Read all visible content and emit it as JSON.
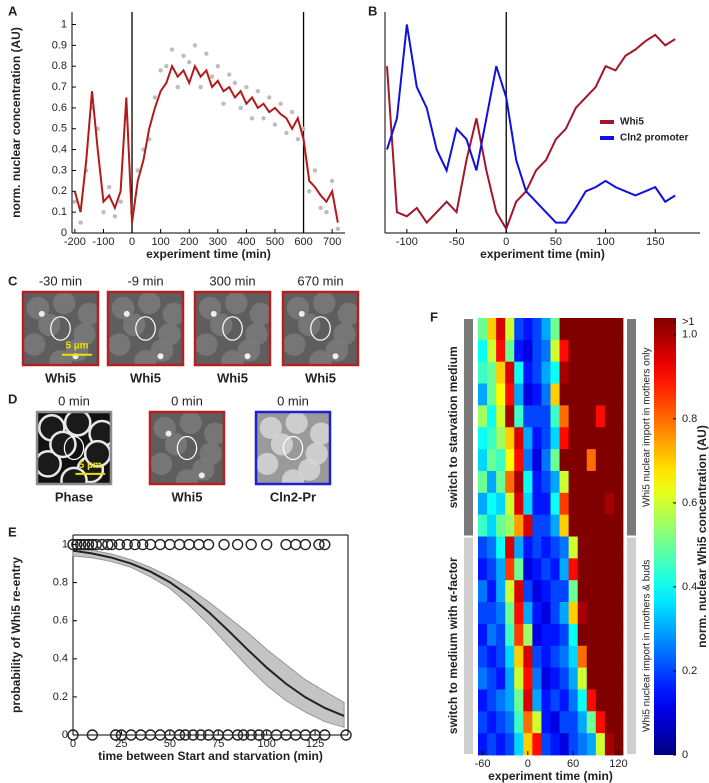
{
  "chart_data": [
    {
      "type": "line",
      "panel": "A",
      "ylabel": "norm. nuclear concentration (AU)",
      "xlabel": "experiment time (min)",
      "x": [
        -200,
        -180,
        -160,
        -140,
        -120,
        -100,
        -80,
        -60,
        -40,
        -20,
        0,
        20,
        40,
        60,
        80,
        100,
        120,
        140,
        160,
        180,
        200,
        220,
        240,
        260,
        280,
        300,
        320,
        340,
        360,
        380,
        400,
        420,
        440,
        460,
        480,
        500,
        520,
        540,
        560,
        580,
        600,
        620,
        640,
        660,
        680,
        700,
        720
      ],
      "series": [
        {
          "type": "scatter",
          "color": "#bdbdbd",
          "values": [
            0.15,
            0.05,
            0.3,
            0.6,
            0.5,
            0.1,
            0.22,
            0.08,
            0.15,
            0.55,
            0.1,
            0.3,
            0.4,
            0.45,
            0.65,
            0.78,
            0.8,
            0.88,
            0.7,
            0.85,
            0.82,
            0.9,
            0.7,
            0.86,
            0.75,
            0.8,
            0.62,
            0.76,
            0.72,
            0.6,
            0.7,
            0.55,
            0.68,
            0.55,
            0.65,
            0.52,
            0.62,
            0.48,
            0.58,
            0.45,
            0.5,
            0.2,
            0.3,
            0.12,
            0.1,
            0.25,
            0.02
          ]
        },
        {
          "type": "line",
          "color": "#b31b1b",
          "values": [
            0.2,
            0.1,
            0.35,
            0.68,
            0.4,
            0.15,
            0.18,
            0.12,
            0.2,
            0.65,
            0.05,
            0.25,
            0.35,
            0.5,
            0.6,
            0.68,
            0.72,
            0.8,
            0.75,
            0.78,
            0.72,
            0.8,
            0.75,
            0.78,
            0.7,
            0.73,
            0.68,
            0.7,
            0.65,
            0.68,
            0.62,
            0.65,
            0.6,
            0.62,
            0.58,
            0.6,
            0.57,
            0.55,
            0.5,
            0.55,
            0.45,
            0.25,
            0.22,
            0.18,
            0.15,
            0.2,
            0.05
          ]
        }
      ],
      "vlines": [
        0,
        600
      ],
      "xlim": [
        -210,
        745
      ],
      "xticks": [
        -200,
        -100,
        0,
        100,
        200,
        300,
        400,
        500,
        600,
        700
      ],
      "ylim": [
        0,
        1.06
      ],
      "yticks": [
        0,
        0.1,
        0.2,
        0.3,
        0.4,
        0.5,
        0.6,
        0.7,
        0.8,
        0.9,
        1
      ]
    },
    {
      "type": "line",
      "panel": "B",
      "xlabel": "experiment time (min)",
      "legend": "right",
      "x": [
        -120,
        -110,
        -100,
        -90,
        -80,
        -70,
        -60,
        -50,
        -40,
        -30,
        -20,
        -10,
        0,
        10,
        20,
        30,
        40,
        50,
        60,
        70,
        80,
        90,
        100,
        110,
        120,
        130,
        140,
        150,
        160,
        170
      ],
      "series": [
        {
          "type": "line",
          "name": "Whi5",
          "color": "#a3162a",
          "values": [
            0.8,
            0.1,
            0.08,
            0.12,
            0.05,
            0.1,
            0.15,
            0.1,
            0.35,
            0.55,
            0.3,
            0.1,
            0.02,
            0.15,
            0.2,
            0.3,
            0.35,
            0.45,
            0.5,
            0.6,
            0.65,
            0.7,
            0.8,
            0.78,
            0.85,
            0.88,
            0.92,
            0.95,
            0.9,
            0.93
          ]
        },
        {
          "type": "line",
          "name": "Cln2 promoter",
          "color": "#1010e0",
          "values": [
            0.4,
            0.55,
            1,
            0.7,
            0.6,
            0.4,
            0.3,
            0.5,
            0.45,
            0.3,
            0.55,
            0.8,
            0.65,
            0.35,
            0.2,
            0.15,
            0.1,
            0.05,
            0.05,
            0.12,
            0.2,
            0.22,
            0.25,
            0.22,
            0.2,
            0.18,
            0.2,
            0.22,
            0.15,
            0.18
          ]
        }
      ],
      "vlines": [
        0
      ],
      "xlim": [
        -122,
        195
      ],
      "xticks": [
        -100,
        -50,
        0,
        50,
        100,
        150
      ],
      "ylim": [
        0,
        1.06
      ]
    },
    {
      "type": "line",
      "panel": "E",
      "ylabel": "probability of Whi5 re-entry",
      "xlabel": "time between Start and starvation (min)",
      "x": [
        0,
        10,
        20,
        30,
        40,
        50,
        60,
        70,
        80,
        90,
        100,
        110,
        120,
        130,
        140
      ],
      "series": [
        {
          "type": "band",
          "color": "#c4c4c4",
          "lower": [
            0.94,
            0.93,
            0.91,
            0.88,
            0.83,
            0.77,
            0.68,
            0.58,
            0.47,
            0.36,
            0.26,
            0.18,
            0.12,
            0.07,
            0.04
          ],
          "upper": [
            0.98,
            0.97,
            0.95,
            0.92,
            0.88,
            0.83,
            0.77,
            0.7,
            0.62,
            0.54,
            0.45,
            0.37,
            0.29,
            0.23,
            0.17
          ]
        },
        {
          "type": "line",
          "color": "#222222",
          "values": [
            0.968,
            0.953,
            0.931,
            0.9,
            0.858,
            0.802,
            0.731,
            0.646,
            0.55,
            0.45,
            0.354,
            0.269,
            0.198,
            0.142,
            0.1
          ]
        },
        {
          "type": "circles",
          "color": "#222222",
          "x": [
            0,
            2,
            4,
            6,
            8,
            10,
            12,
            15,
            18,
            20,
            24,
            28,
            32,
            36,
            40,
            45,
            50,
            55,
            60,
            65,
            70,
            78,
            85,
            92,
            100,
            110,
            115,
            120,
            127,
            130
          ],
          "values": [
            1,
            1,
            1,
            1,
            1,
            1,
            1,
            1,
            1,
            1,
            1,
            1,
            1,
            1,
            1,
            1,
            1,
            1,
            1,
            1,
            1,
            1,
            1,
            1,
            1,
            1,
            1,
            1,
            1,
            1
          ]
        },
        {
          "type": "circles",
          "color": "#222222",
          "x": [
            0,
            10,
            22,
            25,
            30,
            35,
            40,
            45,
            50,
            55,
            58,
            62,
            66,
            70,
            75,
            80,
            85,
            88,
            92,
            96,
            100,
            105,
            110,
            115,
            120,
            125,
            130,
            141
          ],
          "values": [
            0,
            0,
            0,
            0,
            0,
            0,
            0,
            0,
            0,
            0,
            0,
            0,
            0,
            0,
            0,
            0,
            0,
            0,
            0,
            0,
            0,
            0,
            0,
            0,
            0,
            0,
            0,
            0
          ]
        }
      ],
      "xlim": [
        0,
        142
      ],
      "xticks": [
        0,
        25,
        50,
        75,
        100,
        125
      ],
      "ylim": [
        0,
        1.05
      ],
      "yticks": [
        0,
        0.2,
        0.4,
        0.6,
        0.8,
        1
      ]
    },
    {
      "type": "heatmap",
      "panel": "F",
      "xlabel": "experiment time (min)",
      "colormap": "jet",
      "x": [
        -60,
        -48,
        -36,
        -24,
        -12,
        0,
        12,
        24,
        36,
        48,
        60,
        72,
        84,
        96,
        108,
        120
      ],
      "xlim": [
        -66,
        126
      ],
      "xticks": [
        -60,
        0,
        60,
        120
      ],
      "clim": [
        0,
        1.04
      ],
      "cticks": [
        0,
        0.2,
        0.4,
        0.6,
        0.8,
        {
          "value": 1,
          "label": "1.0"
        },
        {
          "value": 1.03,
          "label": ">1"
        }
      ],
      "colorbar_label": "norm. nuclear Whi5 concentration (AU)",
      "groups": [
        {
          "left": "switch to starvation medium",
          "right": "Whi5 nuclear import in mothers only",
          "z": [
            [
              0.5,
              0.7,
              0.95,
              0.6,
              0.2,
              0.15,
              0.2,
              0.3,
              0.5,
              1.1,
              1.2,
              1.2,
              1.2,
              1.1,
              1.2,
              1.2
            ],
            [
              0.4,
              0.6,
              0.9,
              0.5,
              0.15,
              0.1,
              0.2,
              0.25,
              0.6,
              0.9,
              1.2,
              1.2,
              1.1,
              1.2,
              1.2,
              1.2
            ],
            [
              0.45,
              0.5,
              0.7,
              0.95,
              0.4,
              0.15,
              0.2,
              0.3,
              0.4,
              1,
              1.2,
              1.1,
              1.2,
              1.2,
              1.1,
              1.2
            ],
            [
              0.3,
              0.5,
              0.65,
              0.9,
              0.3,
              0.1,
              0.15,
              0.25,
              0.7,
              1.1,
              1.2,
              1.2,
              1.2,
              1.2,
              1.2,
              1.2
            ],
            [
              0.55,
              0.4,
              0.6,
              1,
              0.45,
              0.2,
              0.2,
              0.2,
              0.45,
              0.8,
              1.1,
              1.2,
              1.1,
              0.9,
              1.2,
              1.2
            ],
            [
              0.4,
              0.45,
              0.55,
              0.7,
              0.95,
              0.3,
              0.15,
              0.2,
              0.35,
              0.9,
              1.2,
              1.2,
              1.2,
              1.2,
              1.2,
              1.1
            ],
            [
              0.35,
              0.5,
              0.45,
              0.65,
              0.9,
              0.25,
              0.1,
              0.25,
              0.5,
              1.1,
              1.1,
              1.2,
              0.8,
              1.2,
              1.2,
              1.2
            ],
            [
              0.5,
              0.3,
              0.5,
              0.8,
              1,
              0.4,
              0.15,
              0.2,
              0.3,
              0.6,
              1.2,
              1.2,
              1.2,
              1.1,
              1.2,
              1.2
            ],
            [
              0.3,
              0.4,
              0.35,
              0.6,
              0.95,
              0.35,
              0.15,
              0.15,
              0.4,
              0.85,
              1.1,
              1.2,
              1.2,
              1.2,
              1,
              1.2
            ],
            [
              0.45,
              0.35,
              0.5,
              0.55,
              0.75,
              0.95,
              0.2,
              0.2,
              0.3,
              0.7,
              1.2,
              1.1,
              1.2,
              1.2,
              1.2,
              1.2
            ]
          ]
        },
        {
          "left": "switch to medium with α-factor",
          "right": "Whi5 nuclear import in mothers & buds",
          "z": [
            [
              0.2,
              0.25,
              0.4,
              0.95,
              0.3,
              0.15,
              0.2,
              0.15,
              0.2,
              0.25,
              0.6,
              1.2,
              1.2,
              1.2,
              1.2,
              1.2
            ],
            [
              0.15,
              0.2,
              0.3,
              0.85,
              0.5,
              0.1,
              0.15,
              0.2,
              0.15,
              0.3,
              0.9,
              1.1,
              1.2,
              1.2,
              1.2,
              1.1
            ],
            [
              0.25,
              0.15,
              0.3,
              0.6,
              0.95,
              0.2,
              0.1,
              0.15,
              0.2,
              0.2,
              0.5,
              1.2,
              1.2,
              1.2,
              1.2,
              1.2
            ],
            [
              0.2,
              0.2,
              0.25,
              0.5,
              0.9,
              0.3,
              0.15,
              0.1,
              0.2,
              0.3,
              0.7,
              1,
              1.2,
              1.2,
              1.1,
              1.2
            ],
            [
              0.15,
              0.25,
              0.2,
              0.45,
              0.85,
              0.55,
              0.1,
              0.15,
              0.15,
              0.2,
              0.4,
              1.1,
              1.2,
              1.2,
              1.2,
              1.2
            ],
            [
              0.2,
              0.15,
              0.2,
              0.35,
              0.7,
              0.95,
              0.2,
              0.15,
              0.2,
              0.25,
              0.35,
              0.8,
              1.2,
              1.2,
              1.2,
              1.2
            ],
            [
              0.25,
              0.2,
              0.15,
              0.3,
              0.6,
              0.9,
              0.25,
              0.1,
              0.15,
              0.2,
              0.3,
              0.6,
              1.1,
              1.2,
              1.2,
              1.2
            ],
            [
              0.15,
              0.2,
              0.25,
              0.3,
              0.5,
              0.95,
              0.3,
              0.15,
              0.2,
              0.15,
              0.25,
              0.4,
              0.9,
              1.2,
              1.2,
              1.1
            ],
            [
              0.2,
              0.15,
              0.2,
              0.25,
              0.45,
              0.8,
              0.6,
              0.15,
              0.1,
              0.2,
              0.2,
              0.3,
              0.5,
              0.9,
              1.2,
              1.2
            ],
            [
              0.15,
              0.2,
              0.15,
              0.2,
              0.35,
              0.7,
              0.9,
              0.2,
              0.15,
              0.1,
              0.2,
              0.25,
              0.3,
              0.6,
              1,
              1.2
            ]
          ]
        }
      ]
    }
  ],
  "image_rows": [
    {
      "panel": "C",
      "scale_bar": "5 µm",
      "images": [
        {
          "title": "-30 min",
          "label": "Whi5",
          "color": "#b22222"
        },
        {
          "title": "-9 min",
          "label": "Whi5",
          "color": "#b22222"
        },
        {
          "title": "300 min",
          "label": "Whi5",
          "color": "#b22222"
        },
        {
          "title": "670 min",
          "label": "Whi5",
          "color": "#b22222"
        }
      ]
    },
    {
      "panel": "D",
      "scale_bar": "5 µm",
      "images": [
        {
          "title": "0 min",
          "label": "Phase",
          "color": "#8c8c8c"
        },
        {
          "title": "0 min",
          "label": "Whi5",
          "color": "#b22222"
        },
        {
          "title": "0 min",
          "label": "Cln2-Pr",
          "color": "#2020d0"
        }
      ]
    }
  ]
}
